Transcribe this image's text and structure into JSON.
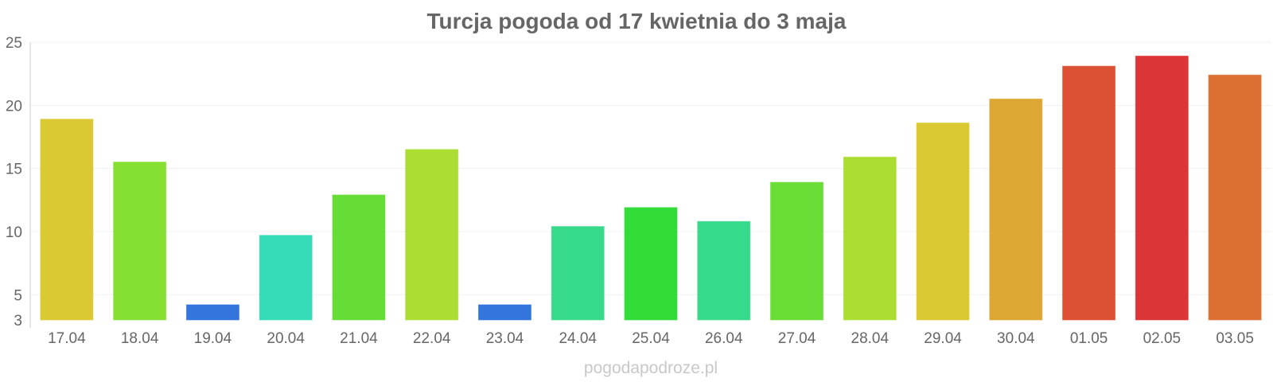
{
  "chart_data": {
    "type": "bar",
    "title": "Turcja pogoda od 17 kwietnia do 3 maja",
    "xlabel": "",
    "ylabel": "",
    "ylim": [
      3,
      25
    ],
    "yticks": [
      3,
      5,
      10,
      15,
      20,
      25
    ],
    "grid": true,
    "categories": [
      "17.04",
      "18.04",
      "19.04",
      "20.04",
      "21.04",
      "22.04",
      "23.04",
      "24.04",
      "25.04",
      "26.04",
      "27.04",
      "28.04",
      "29.04",
      "30.04",
      "01.05",
      "02.05",
      "03.05"
    ],
    "values": [
      18.9,
      15.5,
      4.2,
      9.7,
      12.9,
      16.5,
      4.2,
      10.4,
      11.9,
      10.8,
      13.9,
      15.9,
      18.6,
      20.5,
      23.1,
      23.9,
      22.4
    ],
    "colors": [
      "#dbc933",
      "#86e032",
      "#3374dd",
      "#36dcb8",
      "#66dd36",
      "#abdd33",
      "#3374dd",
      "#37da8a",
      "#32dd3a",
      "#37da8a",
      "#6ade36",
      "#abdd33",
      "#dbc933",
      "#dca733",
      "#dc5133",
      "#dc3535",
      "#dc7033"
    ]
  },
  "watermark": "pogodapodroze.pl"
}
